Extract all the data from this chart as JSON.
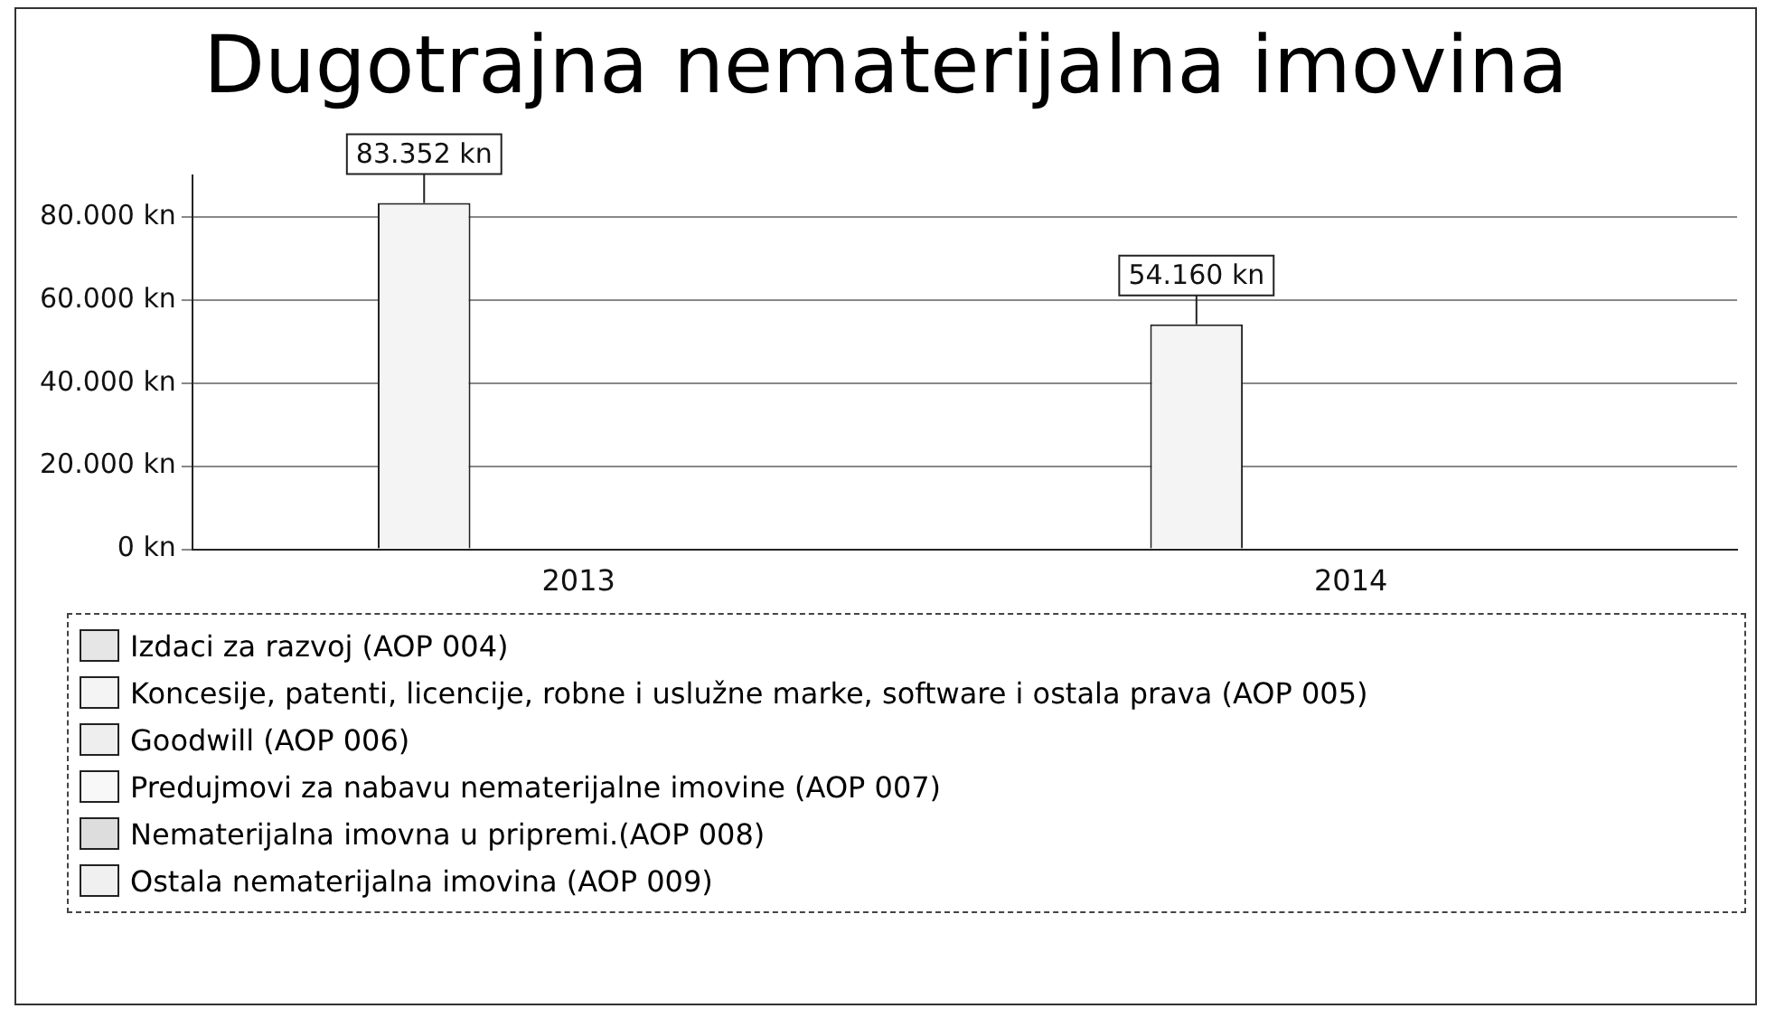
{
  "chart_data": {
    "type": "bar",
    "title": "Dugotrajna nematerijalna imovina",
    "categories": [
      "2013",
      "2014"
    ],
    "series": [
      {
        "name": "Izdaci za razvoj (AOP 004)",
        "color": "#e6e6e6",
        "values": [
          null,
          null
        ]
      },
      {
        "name": "Koncesije, patenti, licencije, robne i uslužne marke, software i ostala prava (AOP 005)",
        "color": "#f4f4f4",
        "values": [
          83352,
          54160
        ],
        "value_labels": [
          "83.352 kn",
          "54.160 kn"
        ]
      },
      {
        "name": "Goodwill (AOP 006)",
        "color": "#eeeeee",
        "values": [
          null,
          null
        ]
      },
      {
        "name": "Predujmovi za nabavu nematerijalne imovine (AOP 007)",
        "color": "#f8f8f8",
        "values": [
          null,
          null
        ]
      },
      {
        "name": "Nematerijalna imovna u pripremi.(AOP 008)",
        "color": "#dddddd",
        "values": [
          null,
          null
        ]
      },
      {
        "name": "Ostala nematerijalna imovina (AOP 009)",
        "color": "#f0f0f0",
        "values": [
          null,
          null
        ]
      }
    ],
    "ylim": [
      0,
      90000
    ],
    "yticks": [
      {
        "value": 0,
        "label": "0 kn"
      },
      {
        "value": 20000,
        "label": "20.000 kn"
      },
      {
        "value": 40000,
        "label": "40.000 kn"
      },
      {
        "value": 60000,
        "label": "60.000 kn"
      },
      {
        "value": 80000,
        "label": "80.000 kn"
      }
    ],
    "grid": "y",
    "legend": "bottom"
  }
}
